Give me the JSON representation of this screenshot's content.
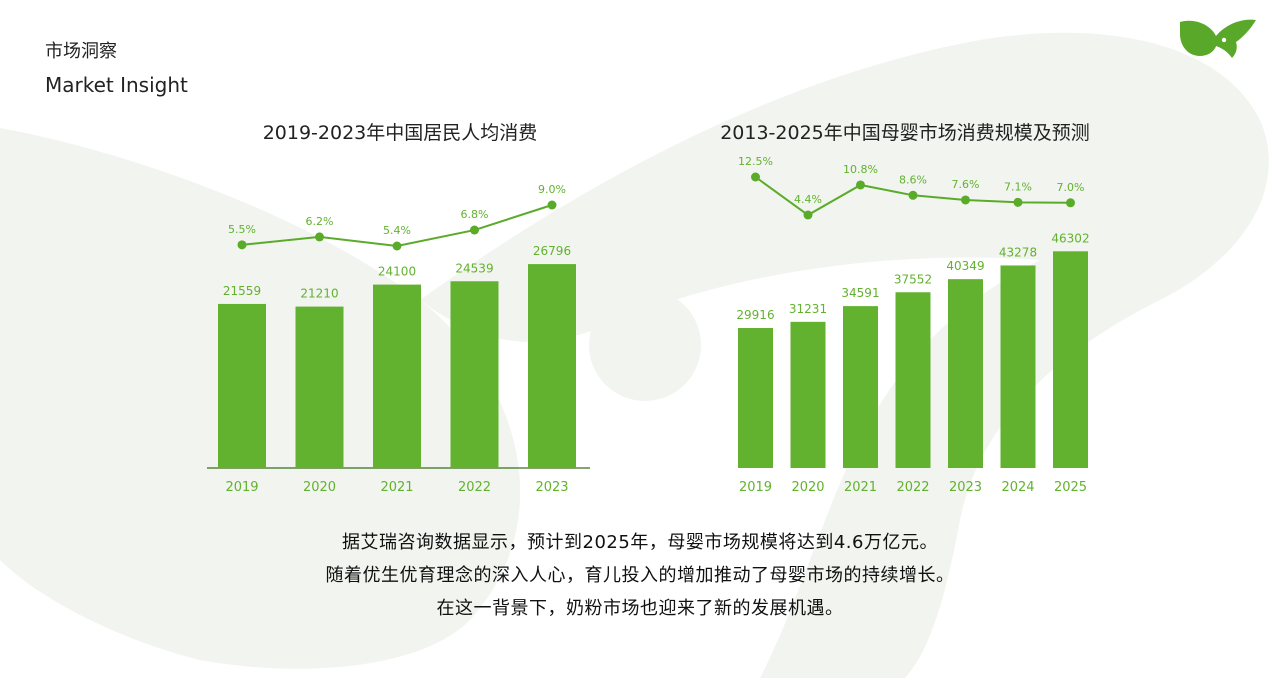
{
  "header": {
    "title_cn": "市场洞察",
    "title_en": "Market Insight"
  },
  "colors": {
    "bar": "#62b22f",
    "line": "#5bab2a",
    "label": "#62b22f",
    "background_shape": "#eef2ec",
    "logo": "#5aa829"
  },
  "icons": {
    "logo": "green-leaf-logo-icon"
  },
  "chart_data": [
    {
      "type": "bar",
      "title": "2019-2023年中国居民人均消费",
      "categories": [
        "2019",
        "2020",
        "2021",
        "2022",
        "2023"
      ],
      "series": [
        {
          "values": [
            21559,
            21210,
            24100,
            24539,
            26796
          ]
        }
      ],
      "growth_line": {
        "type": "line",
        "values": [
          "5.5%",
          "6.2%",
          "5.4%",
          "6.8%",
          "9.0%"
        ],
        "numeric": [
          5.5,
          6.2,
          5.4,
          6.8,
          9.0
        ]
      }
    },
    {
      "type": "bar",
      "title": "2013-2025年中国母婴市场消费规模及预测",
      "categories": [
        "2019",
        "2020",
        "2021",
        "2022",
        "2023",
        "2024",
        "2025"
      ],
      "series": [
        {
          "values": [
            29916,
            31231,
            34591,
            37552,
            40349,
            43278,
            46302
          ]
        }
      ],
      "growth_line": {
        "type": "line",
        "values": [
          "12.5%",
          "4.4%",
          "10.8%",
          "8.6%",
          "7.6%",
          "7.1%",
          "7.0%"
        ],
        "numeric": [
          12.5,
          4.4,
          10.8,
          8.6,
          7.6,
          7.1,
          7.0
        ]
      }
    }
  ],
  "caption": {
    "lines": [
      "据艾瑞咨询数据显示，预计到2025年，母婴市场规模将达到4.6万亿元。",
      "随着优生优育理念的深入人心，育儿投入的增加推动了母婴市场的持续增长。",
      "在这一背景下，奶粉市场也迎来了新的发展机遇。"
    ]
  }
}
